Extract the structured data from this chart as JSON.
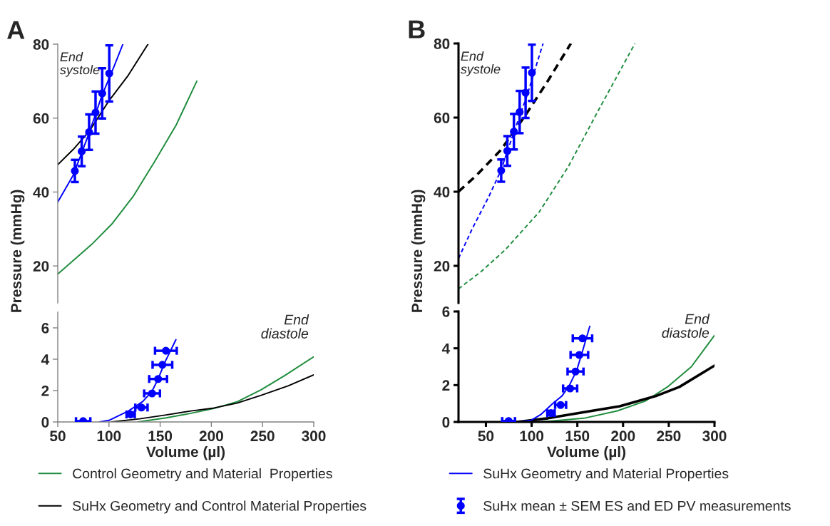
{
  "chart_data": [
    {
      "type": "line",
      "title": "A",
      "ylabel": "Pressure (mmHg)",
      "xlim": [
        50,
        300
      ],
      "ylim": [
        10,
        80
      ],
      "yticks": [
        20,
        40,
        60,
        80
      ],
      "tick_labels": "y",
      "annotations": [
        "End\nsystole"
      ],
      "line_style": "solid",
      "legend": "bottom",
      "series": [
        {
          "name": "Control Geometry and Material  Properties",
          "color": "#1e8c3c",
          "x": [
            50,
            83,
            102.7,
            123.6,
            144.5,
            165.4,
            185.8
          ],
          "values": [
            17.8,
            25.8,
            31.3,
            38.8,
            48.2,
            58,
            70
          ]
        },
        {
          "name": "SuHx Geometry and Control Material Properties",
          "color": "#000000",
          "x": [
            50,
            65,
            80.6,
            100.3,
            118.9,
            138.1
          ],
          "values": [
            47.4,
            51.5,
            56.4,
            64.8,
            71.6,
            80
          ]
        },
        {
          "name": "SuHx Geometry and Material Properties",
          "color": "#0000ff",
          "x": [
            50,
            65,
            80,
            93,
            105,
            113.6
          ],
          "values": [
            37.3,
            44.5,
            55.5,
            66,
            74,
            80
          ]
        },
        {
          "name": "SuHx mean ± SEM ES and ED PV measurements",
          "type": "scatter",
          "marker": "circle",
          "color": "#0000ff",
          "x": [
            66.7,
            73.4,
            80.6,
            86.9,
            93.4,
            100.3
          ],
          "values": [
            45.7,
            51,
            56.2,
            61.5,
            66.7,
            72.1
          ],
          "errors": [
            3,
            4,
            4.8,
            5.7,
            6.8,
            7.6
          ]
        }
      ]
    },
    {
      "type": "line",
      "xlabel": "Volume (µl)",
      "xlim": [
        50,
        300
      ],
      "xticks": [
        50,
        100,
        150,
        200,
        250,
        300
      ],
      "ylim": [
        0,
        7
      ],
      "yticks": [
        0,
        2,
        4,
        6
      ],
      "annotations": [
        "End\ndiastole"
      ],
      "line_style": "solid",
      "legend": "bottom",
      "series": [
        {
          "name": "Control Geometry and Material  Properties",
          "color": "#1e8c3c",
          "x": [
            128.2,
            156,
            180,
            202.5,
            225.7,
            248.6,
            272,
            300
          ],
          "values": [
            0,
            0.26,
            0.55,
            0.86,
            1.3,
            2.05,
            2.97,
            4.16
          ]
        },
        {
          "name": "SuHx Geometry and Control Material Properties",
          "color": "#000000",
          "x": [
            102.7,
            130,
            156,
            180,
            202.5,
            225,
            248.6,
            275,
            300
          ],
          "values": [
            0,
            0.2,
            0.45,
            0.7,
            0.89,
            1.2,
            1.7,
            2.3,
            3.0
          ]
        },
        {
          "name": "SuHx Geometry and Material Properties",
          "color": "#0000ff",
          "x": [
            91,
            100,
            119,
            133,
            142,
            148,
            155,
            165.4
          ],
          "values": [
            0,
            0.1,
            0.7,
            1.3,
            1.95,
            2.74,
            3.86,
            5.25
          ]
        },
        {
          "name": "SuHx mean ± SEM ES and ED PV measurements",
          "type": "scatter",
          "marker": "circle",
          "color": "#0000ff",
          "x": [
            74.8,
            121.2,
            131.7,
            142.1,
            148,
            152.2,
            155.6
          ],
          "values": [
            0.05,
            0.48,
            0.92,
            1.82,
            2.74,
            3.64,
            4.54
          ],
          "xerrors": [
            7,
            4,
            6,
            7.7,
            8.7,
            9.6,
            10.6
          ]
        }
      ]
    },
    {
      "type": "line",
      "title": "B",
      "ylabel": "Pressure (mmHg)",
      "xlim": [
        20,
        300
      ],
      "ylim": [
        10,
        80
      ],
      "yticks": [
        20,
        40,
        60,
        80
      ],
      "tick_labels": "y",
      "annotations": [
        "End\nsystole"
      ],
      "line_style": "dashed",
      "legend": "bottom",
      "series": [
        {
          "name": "Control Geometry and Material  Properties",
          "color": "#1e8c3c",
          "x": [
            20,
            45,
            71.4,
            108.5,
            140.2,
            172,
            213
          ],
          "values": [
            13.8,
            18.5,
            24.4,
            34.6,
            46.8,
            61.5,
            80
          ]
        },
        {
          "name": "SuHx Geometry and Control Material Properties",
          "color": "#000000",
          "x": [
            20,
            40,
            66.1,
            92.6,
            118,
            142.9
          ],
          "values": [
            40,
            44.5,
            51.2,
            60.4,
            70,
            80
          ]
        },
        {
          "name": "SuHx Geometry and Material Properties",
          "color": "#0000ff",
          "x": [
            20,
            35,
            53,
            66,
            79.4,
            95,
            112.5
          ],
          "values": [
            22,
            30,
            38.6,
            45.5,
            55.2,
            66,
            80
          ]
        },
        {
          "name": "SuHx mean ± SEM ES and ED PV measurements",
          "type": "scatter",
          "marker": "circle",
          "color": "#0000ff",
          "x": [
            66.7,
            73.4,
            80.6,
            86.9,
            93.4,
            100.3
          ],
          "values": [
            45.7,
            51,
            56.2,
            61.5,
            66.7,
            72.1
          ],
          "errors": [
            3,
            4,
            4.8,
            5.7,
            6.8,
            7.6
          ]
        }
      ]
    },
    {
      "type": "line",
      "xlabel": "Volume (µl)",
      "xlim": [
        20,
        300
      ],
      "xticks": [
        50,
        100,
        150,
        200,
        250,
        300
      ],
      "ylim": [
        0,
        6
      ],
      "yticks": [
        0,
        2,
        4,
        6
      ],
      "annotations": [
        "End\ndiastole"
      ],
      "line_style": "solid",
      "legend": "bottom",
      "series": [
        {
          "name": "Control Geometry and Material  Properties",
          "color": "#1e8c3c",
          "x": [
            110,
            157.1,
            193.7,
            225,
            248.5,
            274.7,
            300
          ],
          "values": [
            0,
            0.2,
            0.6,
            1.15,
            1.9,
            3.0,
            4.7
          ]
        },
        {
          "name": "SuHx Geometry and Control Material Properties",
          "color": "#000000",
          "x": [
            84,
            117.9,
            159.7,
            196.3,
            235.5,
            261.6,
            300
          ],
          "values": [
            0,
            0.2,
            0.55,
            0.85,
            1.4,
            1.9,
            3.06
          ]
        },
        {
          "name": "SuHx Geometry and Material Properties",
          "color": "#0000ff",
          "x": [
            84,
            99.6,
            110,
            123,
            133,
            141.4,
            149.3,
            156,
            163.6
          ],
          "values": [
            0,
            0.09,
            0.4,
            1.0,
            1.4,
            2.0,
            2.8,
            3.9,
            5.2
          ]
        },
        {
          "name": "SuHx mean ± SEM ES and ED PV measurements",
          "type": "scatter",
          "marker": "circle",
          "color": "#0000ff",
          "x": [
            74.8,
            121.2,
            131.7,
            142.1,
            148,
            152.2,
            155.6
          ],
          "values": [
            0.05,
            0.48,
            0.92,
            1.82,
            2.74,
            3.64,
            4.54
          ],
          "xerrors": [
            7,
            4,
            6,
            7.7,
            8.7,
            9.6,
            10.6
          ]
        }
      ]
    }
  ]
}
